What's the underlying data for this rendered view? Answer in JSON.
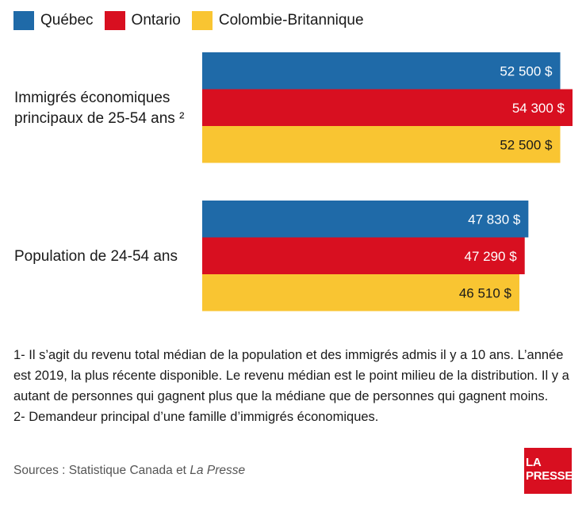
{
  "legend": [
    {
      "label": "Québec",
      "color": "#1f6aa8"
    },
    {
      "label": "Ontario",
      "color": "#d80f20"
    },
    {
      "label": "Colombie-Britannique",
      "color": "#f9c532"
    }
  ],
  "chart_data": {
    "type": "bar",
    "orientation": "horizontal",
    "categories": [
      "Immigrés économiques principaux de 25-54 ans ²",
      "Population de 24-54 ans"
    ],
    "series": [
      {
        "name": "Québec",
        "color": "#1f6aa8",
        "values": [
          52500,
          47830
        ],
        "labels": [
          "52 500 $",
          "47 830 $"
        ]
      },
      {
        "name": "Ontario",
        "color": "#d80f20",
        "values": [
          54300,
          47290
        ],
        "labels": [
          "54 300 $",
          "47 290 $"
        ]
      },
      {
        "name": "Colombie-Britannique",
        "color": "#f9c532",
        "values": [
          52500,
          46510
        ],
        "labels": [
          "52 500 $",
          "46 510 $"
        ]
      }
    ],
    "xlim": [
      0,
      54300
    ],
    "grid": false,
    "legend_position": "top-left"
  },
  "category_lines": [
    [
      "Immigrés économiques",
      "principaux de 25-54 ans ²"
    ],
    [
      "Population de 24-54 ans"
    ]
  ],
  "notes": {
    "note1": "1- Il s’agit du revenu total médian de la population et des immigrés admis il y a 10 ans. L’année est 2019, la plus récente disponible. Le revenu médian est le point milieu de la distribution. Il y a autant de personnes qui gagnent plus que la médiane que de personnes qui gagnent moins.",
    "note2": "2- Demandeur principal d’une famille d’immigrés économiques."
  },
  "sources": {
    "prefix": "Sources : Statistique Canada et ",
    "italic": "La Presse"
  },
  "logo": {
    "line1": "LA",
    "line2": "PRESSE"
  }
}
